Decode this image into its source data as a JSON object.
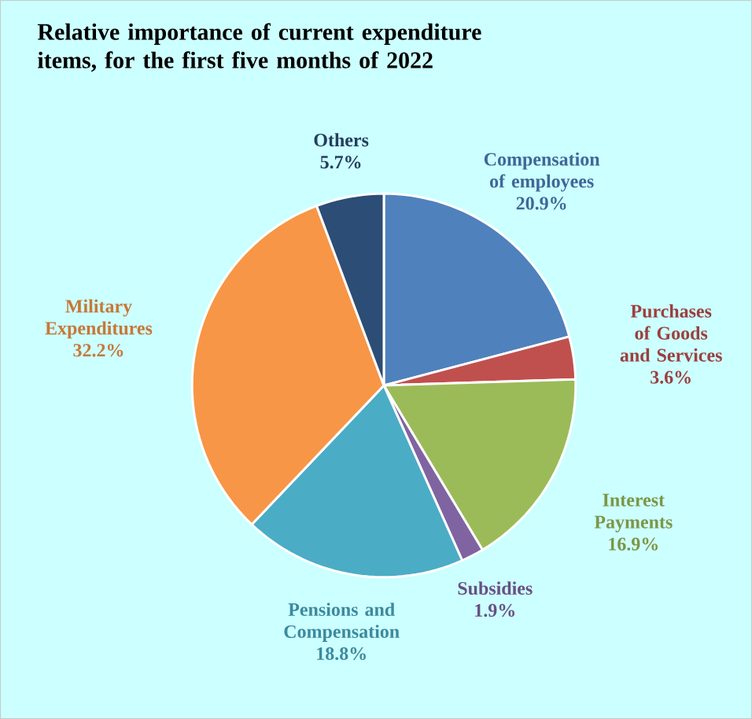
{
  "chart_data": {
    "type": "pie",
    "title": "Relative importance of current expenditure items, for the first five months  of 2022",
    "categories": [
      "Compensation of employees",
      "Purchases of Goods and Services",
      "Interest Payments",
      "Subsidies",
      "Pensions and Compensation",
      "Military Expenditures",
      "Others"
    ],
    "values": [
      20.9,
      3.6,
      16.9,
      1.9,
      18.8,
      32.2,
      5.7
    ],
    "value_labels": [
      "20.9%",
      "3.6%",
      "16.9%",
      "1.9%",
      "18.8%",
      "32.2%",
      "5.7%"
    ],
    "colors": [
      "#4f81bd",
      "#c0504d",
      "#9bbb59",
      "#8064a2",
      "#4bacc6",
      "#f79646",
      "#2c4d75"
    ]
  }
}
